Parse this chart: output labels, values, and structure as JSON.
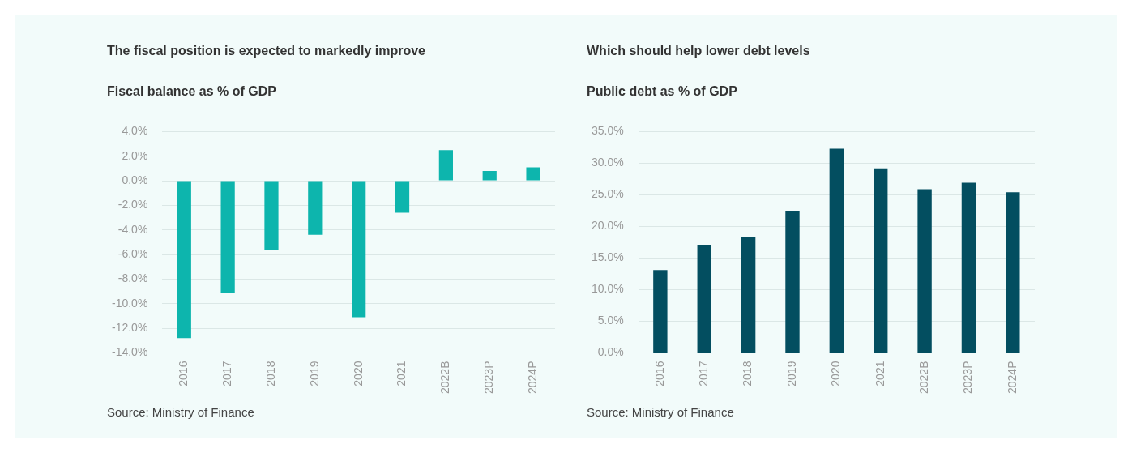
{
  "chart_data": [
    {
      "type": "bar",
      "title": "The fiscal position is expected to markedly improve",
      "subtitle": "Fiscal balance as % of GDP",
      "categories": [
        "2016",
        "2017",
        "2018",
        "2019",
        "2020",
        "2021",
        "2022B",
        "2023P",
        "2024P"
      ],
      "values": [
        -12.8,
        -9.1,
        -5.6,
        -4.4,
        -11.1,
        -2.6,
        2.5,
        0.8,
        1.1
      ],
      "color": "#0db5ad",
      "ylim": [
        -14,
        4
      ],
      "yticks": [
        {
          "value": -14,
          "label": "-14.0%"
        },
        {
          "value": -12,
          "label": "-12.0%"
        },
        {
          "value": -10,
          "label": "-10.0%"
        },
        {
          "value": -8,
          "label": "-8.0%"
        },
        {
          "value": -6,
          "label": "-6.0%"
        },
        {
          "value": -4,
          "label": "-4.0%"
        },
        {
          "value": -2,
          "label": "-2.0%"
        },
        {
          "value": 0,
          "label": "0.0%"
        },
        {
          "value": 2,
          "label": "2.0%"
        },
        {
          "value": 4,
          "label": "4.0%"
        }
      ],
      "grid": "y",
      "annotations": [
        "Source: Ministry of Finance"
      ]
    },
    {
      "type": "bar",
      "title": "Which should help lower debt levels",
      "subtitle": "Public debt as % of GDP",
      "categories": [
        "2016",
        "2017",
        "2018",
        "2019",
        "2020",
        "2021",
        "2022B",
        "2023P",
        "2024P"
      ],
      "values": [
        13.1,
        17.1,
        18.3,
        22.5,
        32.3,
        29.2,
        25.9,
        26.9,
        25.4
      ],
      "color": "#034e60",
      "ylim": [
        0,
        35
      ],
      "yticks": [
        {
          "value": 0,
          "label": "0.0%"
        },
        {
          "value": 5,
          "label": "5.0%"
        },
        {
          "value": 10,
          "label": "10.0%"
        },
        {
          "value": 15,
          "label": "15.0%"
        },
        {
          "value": 20,
          "label": "20.0%"
        },
        {
          "value": 25,
          "label": "25.0%"
        },
        {
          "value": 30,
          "label": "30.0%"
        },
        {
          "value": 35,
          "label": "35.0%"
        }
      ],
      "grid": "y",
      "annotations": [
        "Source: Ministry of Finance"
      ]
    }
  ]
}
